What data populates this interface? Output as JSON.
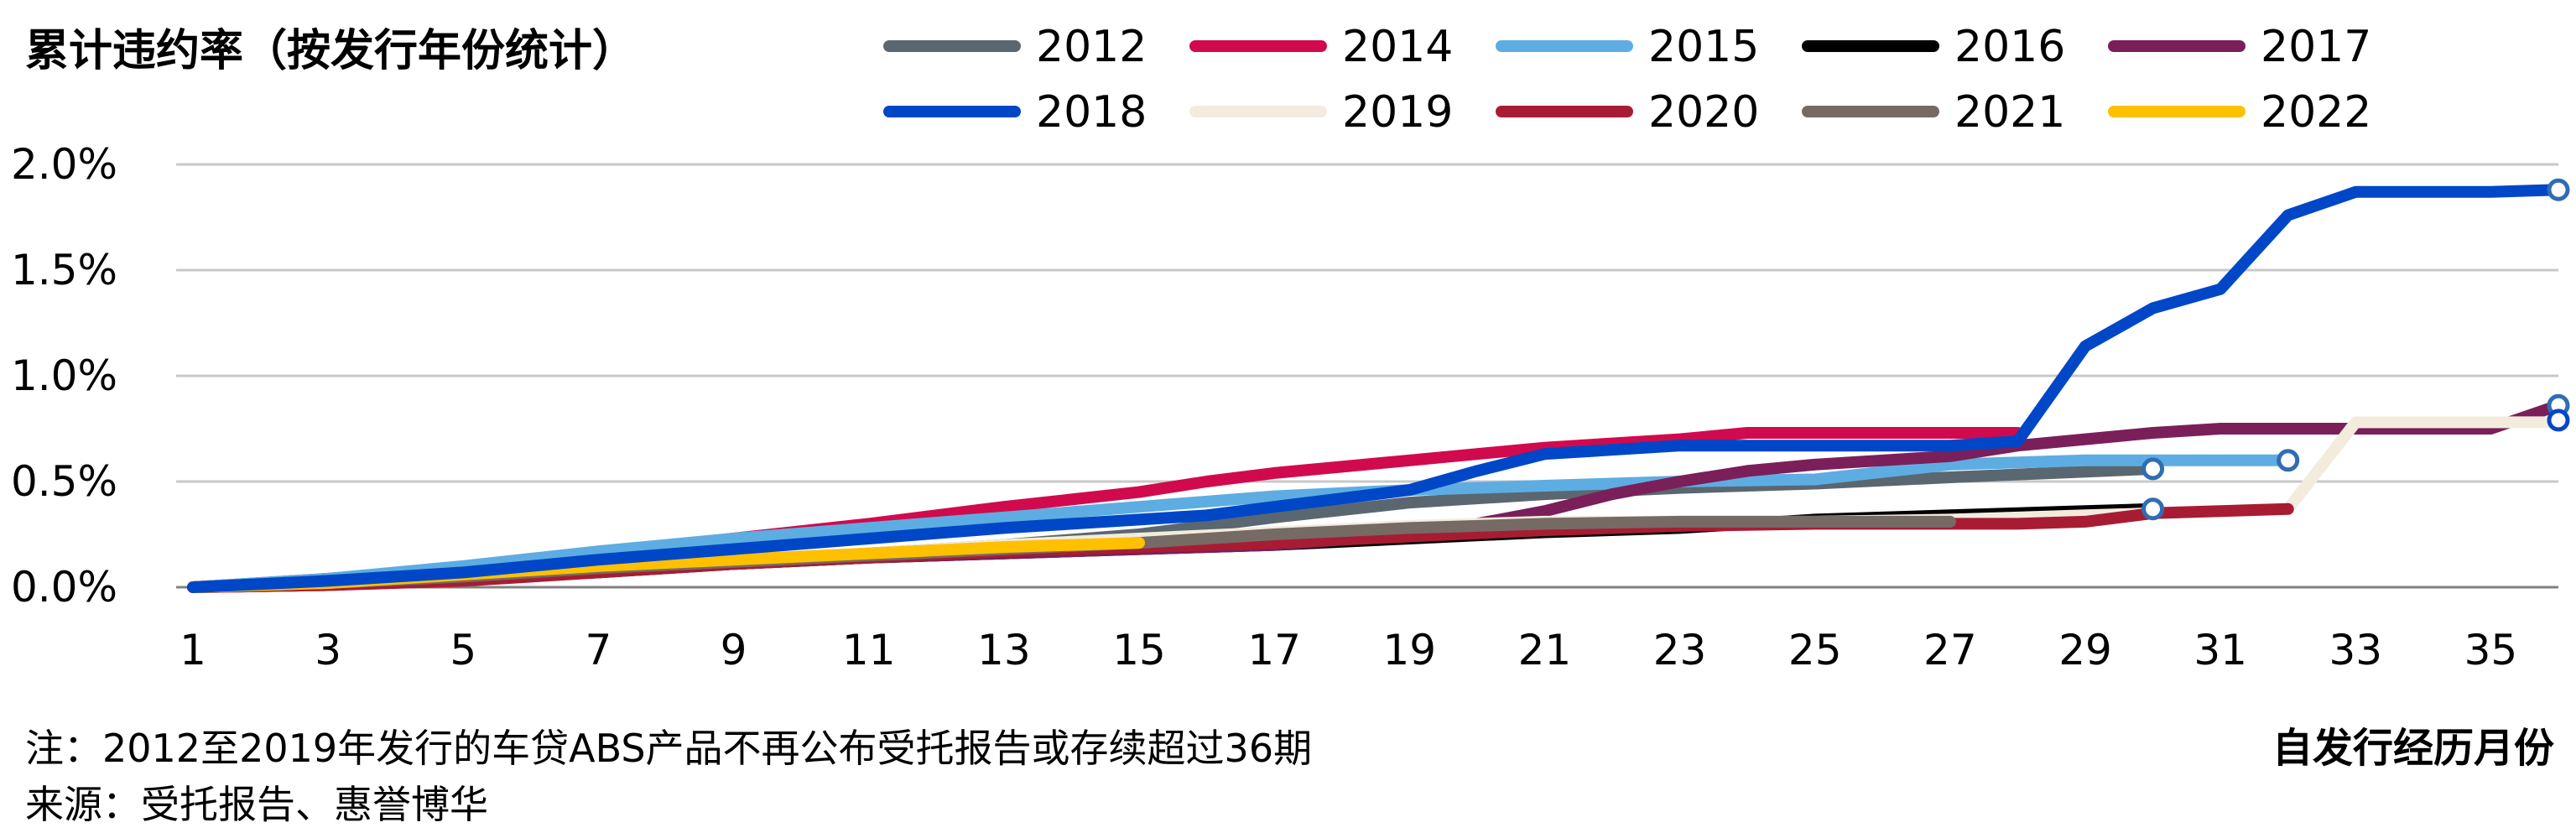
{
  "chart_data": {
    "type": "line",
    "title": "累计违约率（按发行年份统计）",
    "xlabel": "自发行经历月份",
    "ylabel": "",
    "x_ticks": [
      1,
      3,
      5,
      7,
      9,
      11,
      13,
      15,
      17,
      19,
      21,
      23,
      25,
      27,
      29,
      31,
      33,
      35
    ],
    "y_ticks": [
      "0.0%",
      "0.5%",
      "1.0%",
      "1.5%",
      "2.0%"
    ],
    "xlim": [
      1,
      36
    ],
    "ylim": [
      0,
      2.0
    ],
    "grid": "horizontal",
    "legend_position": "top",
    "notes": [
      "注：2012至2019年发行的车贷ABS产品不再公布受托报告或存续超过36期",
      "来源：受托报告、惠誉博华"
    ],
    "series": [
      {
        "name": "2012",
        "color": "#5b6770",
        "end_marker": true,
        "x": [
          1,
          3,
          5,
          7,
          9,
          11,
          13,
          15,
          17,
          19,
          21,
          23,
          25,
          27,
          30
        ],
        "y": [
          0.0,
          0.01,
          0.04,
          0.08,
          0.12,
          0.16,
          0.2,
          0.25,
          0.33,
          0.4,
          0.44,
          0.47,
          0.49,
          0.52,
          0.56
        ]
      },
      {
        "name": "2014",
        "color": "#d10a4e",
        "end_marker": false,
        "x": [
          1,
          3,
          5,
          7,
          9,
          11,
          13,
          15,
          16,
          17,
          18,
          19,
          20,
          21,
          22,
          23,
          24,
          25,
          26,
          27,
          28
        ],
        "y": [
          0.0,
          0.04,
          0.09,
          0.16,
          0.23,
          0.3,
          0.38,
          0.45,
          0.5,
          0.54,
          0.57,
          0.6,
          0.63,
          0.66,
          0.68,
          0.7,
          0.73,
          0.73,
          0.73,
          0.73,
          0.73
        ]
      },
      {
        "name": "2015",
        "color": "#5dade2",
        "end_marker": true,
        "x": [
          1,
          3,
          5,
          7,
          9,
          11,
          13,
          15,
          17,
          19,
          21,
          23,
          25,
          27,
          29,
          32
        ],
        "y": [
          0.0,
          0.04,
          0.1,
          0.17,
          0.23,
          0.28,
          0.33,
          0.38,
          0.43,
          0.46,
          0.48,
          0.5,
          0.51,
          0.58,
          0.6,
          0.6
        ]
      },
      {
        "name": "2016",
        "color": "#000000",
        "end_marker": true,
        "x": [
          1,
          3,
          5,
          7,
          9,
          11,
          13,
          15,
          17,
          19,
          21,
          23,
          25,
          27,
          29,
          30
        ],
        "y": [
          0.0,
          0.01,
          0.04,
          0.07,
          0.11,
          0.14,
          0.16,
          0.18,
          0.2,
          0.23,
          0.26,
          0.28,
          0.32,
          0.34,
          0.36,
          0.37
        ]
      },
      {
        "name": "2017",
        "color": "#7b1f5a",
        "end_marker": true,
        "x": [
          1,
          3,
          5,
          7,
          9,
          11,
          13,
          15,
          17,
          19,
          20,
          21,
          22,
          23,
          24,
          25,
          26,
          27,
          28,
          29,
          30,
          31,
          32,
          33,
          34,
          35,
          36
        ],
        "y": [
          0.0,
          0.01,
          0.04,
          0.08,
          0.11,
          0.14,
          0.16,
          0.18,
          0.2,
          0.25,
          0.3,
          0.36,
          0.44,
          0.5,
          0.55,
          0.58,
          0.6,
          0.62,
          0.67,
          0.7,
          0.73,
          0.75,
          0.75,
          0.75,
          0.75,
          0.75,
          0.86
        ]
      },
      {
        "name": "2018",
        "color": "#0047c8",
        "end_marker": true,
        "x": [
          1,
          3,
          5,
          7,
          9,
          11,
          13,
          15,
          16,
          17,
          18,
          19,
          20,
          21,
          22,
          23,
          24,
          25,
          26,
          27,
          28,
          29,
          30,
          31,
          32,
          33,
          34,
          35,
          36
        ],
        "y": [
          0.0,
          0.03,
          0.07,
          0.13,
          0.18,
          0.23,
          0.28,
          0.32,
          0.34,
          0.38,
          0.42,
          0.46,
          0.55,
          0.63,
          0.65,
          0.67,
          0.67,
          0.67,
          0.67,
          0.67,
          0.69,
          1.14,
          1.32,
          1.41,
          1.76,
          1.87,
          1.87,
          1.87,
          1.88
        ]
      },
      {
        "name": "2019",
        "color": "#f3ecdd",
        "end_marker": false,
        "x": [
          1,
          3,
          5,
          7,
          9,
          11,
          13,
          15,
          17,
          19,
          21,
          23,
          25,
          27,
          29,
          31,
          32,
          33,
          34,
          35,
          36
        ],
        "y": [
          0.0,
          0.01,
          0.04,
          0.08,
          0.12,
          0.16,
          0.2,
          0.23,
          0.26,
          0.29,
          0.31,
          0.31,
          0.31,
          0.32,
          0.34,
          0.36,
          0.37,
          0.78,
          0.78,
          0.78,
          0.78
        ]
      },
      {
        "name": "2020",
        "color": "#a81c33",
        "end_marker": false,
        "x": [
          1,
          3,
          5,
          7,
          9,
          11,
          13,
          15,
          17,
          19,
          21,
          23,
          25,
          27,
          28,
          29,
          30,
          31,
          32
        ],
        "y": [
          0.0,
          0.01,
          0.03,
          0.07,
          0.11,
          0.14,
          0.17,
          0.19,
          0.21,
          0.24,
          0.27,
          0.29,
          0.3,
          0.3,
          0.3,
          0.31,
          0.35,
          0.36,
          0.37
        ]
      },
      {
        "name": "2021",
        "color": "#766a65",
        "end_marker": false,
        "x": [
          1,
          3,
          5,
          7,
          9,
          11,
          13,
          15,
          17,
          19,
          21,
          23,
          25,
          27
        ],
        "y": [
          0.0,
          0.02,
          0.05,
          0.09,
          0.12,
          0.15,
          0.18,
          0.21,
          0.25,
          0.28,
          0.3,
          0.31,
          0.31,
          0.31
        ]
      },
      {
        "name": "2022",
        "color": "#ffc000",
        "end_marker": false,
        "x": [
          1,
          3,
          5,
          7,
          9,
          11,
          13,
          15
        ],
        "y": [
          0.0,
          0.02,
          0.06,
          0.1,
          0.13,
          0.16,
          0.19,
          0.21
        ]
      }
    ],
    "end_marker_overrides": {
      "2019": {
        "x": 36,
        "y": 0.79,
        "marker_color": "#0047c8"
      }
    }
  }
}
